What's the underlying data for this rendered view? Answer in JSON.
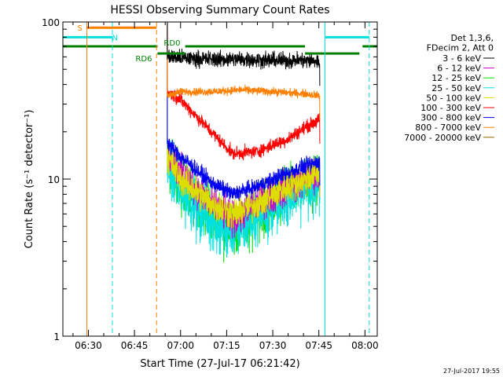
{
  "chart_data": {
    "type": "line",
    "title": "HESSI Observing Summary Count Rates",
    "xlabel": "Start Time (27-Jul-17 06:21:42)",
    "ylabel": "Count Rate (s⁻¹ detector⁻¹)",
    "xlim_min": [
      381.7,
      484
    ],
    "ylim": [
      1,
      100
    ],
    "yscale": "log",
    "grid": false,
    "legend_position": "top-right",
    "x_ticks": [
      {
        "value": 390,
        "label": "06:30"
      },
      {
        "value": 405,
        "label": "06:45"
      },
      {
        "value": 420,
        "label": "07:00"
      },
      {
        "value": 435,
        "label": "07:15"
      },
      {
        "value": 450,
        "label": "07:30"
      },
      {
        "value": 465,
        "label": "07:45"
      },
      {
        "value": 480,
        "label": "08:00"
      }
    ],
    "y_ticks": [
      {
        "value": 1,
        "label": "1"
      },
      {
        "value": 10,
        "label": "10"
      },
      {
        "value": 100,
        "label": "100"
      }
    ],
    "legend_header": [
      "Det 1,3,6,",
      "FDecim 2, Att 0"
    ],
    "data_window": [
      415.7,
      465.3
    ],
    "series": [
      {
        "name": "3 - 6 keV",
        "color": "#000000",
        "noise": 0.1,
        "x": [
          415.7,
          420,
          430,
          440,
          450,
          460,
          465.3
        ],
        "values": [
          60,
          59,
          58,
          58,
          57,
          57,
          56
        ]
      },
      {
        "name": "6 - 12 keV",
        "color": "#cc00cc",
        "noise": 0.22,
        "x": [
          415.7,
          420,
          430,
          437,
          445,
          455,
          465.3
        ],
        "values": [
          15,
          11,
          7,
          5.5,
          7,
          9,
          11
        ]
      },
      {
        "name": "12 - 25 keV",
        "color": "#00dd00",
        "noise": 0.3,
        "x": [
          415.7,
          420,
          430,
          437,
          445,
          455,
          465.3
        ],
        "values": [
          14,
          10,
          6,
          4.8,
          6.5,
          8.5,
          10.5
        ]
      },
      {
        "name": "25 - 50 keV",
        "color": "#00e0e0",
        "noise": 0.3,
        "x": [
          415.7,
          420,
          430,
          437,
          445,
          455,
          465.3
        ],
        "values": [
          13,
          9,
          5.5,
          4.6,
          6,
          8,
          10
        ]
      },
      {
        "name": "50 - 100 keV",
        "color": "#dddd00",
        "noise": 0.2,
        "x": [
          415.7,
          420,
          430,
          437,
          445,
          455,
          465.3
        ],
        "values": [
          14,
          10,
          7,
          6,
          7,
          9,
          11
        ]
      },
      {
        "name": "100 - 300 keV",
        "color": "#ff0000",
        "noise": 0.08,
        "x": [
          415.7,
          420,
          430,
          437,
          445,
          455,
          460,
          465.3
        ],
        "values": [
          36,
          32,
          20,
          14.5,
          15,
          18,
          21,
          24
        ]
      },
      {
        "name": "300 - 800 keV",
        "color": "#0000ee",
        "noise": 0.1,
        "x": [
          415.7,
          420,
          430,
          437,
          445,
          455,
          465.3
        ],
        "values": [
          17,
          14,
          9.5,
          8,
          9,
          11,
          13
        ]
      },
      {
        "name": "800 - 7000 keV",
        "color": "#ff8000",
        "noise": 0.05,
        "x": [
          415.7,
          420,
          430,
          440,
          450,
          460,
          465.3
        ],
        "values": [
          34,
          36,
          36,
          37,
          36,
          35,
          34
        ]
      },
      {
        "name": "7000 - 20000 keV",
        "color": "#996600",
        "noise": 0.0,
        "x": [],
        "values": []
      }
    ],
    "vertical_lines": [
      {
        "x": 389.5,
        "color": "#ff8000",
        "style": "solid"
      },
      {
        "x": 397.8,
        "color": "#00e0e0",
        "style": "dashed"
      },
      {
        "x": 412.2,
        "color": "#ff8000",
        "style": "dashed"
      },
      {
        "x": 467.0,
        "color": "#00e0e0",
        "style": "solid"
      },
      {
        "x": 481.4,
        "color": "#00e0e0",
        "style": "dashed"
      }
    ],
    "flag_bars": [
      {
        "label": "S",
        "color": "#ff8000",
        "y": 92,
        "segments": [
          [
            389.5,
            412.2
          ]
        ]
      },
      {
        "label": "N",
        "color": "#00e0e0",
        "y": 80,
        "segments": [
          [
            381.7,
            397.8
          ],
          [
            467.0,
            481.4
          ]
        ]
      },
      {
        "label": "RD0",
        "color": "#008000",
        "y": 70,
        "segments": [
          [
            381.7,
            412.5
          ],
          [
            421.5,
            460.5
          ],
          [
            479.2,
            484
          ]
        ]
      },
      {
        "label": "RD6",
        "color": "#008000",
        "y": 63,
        "segments": [
          [
            412.5,
            421.5
          ],
          [
            460.5,
            478.2
          ]
        ]
      }
    ],
    "footer_timestamp": "27-Jul-2017 19:55"
  }
}
